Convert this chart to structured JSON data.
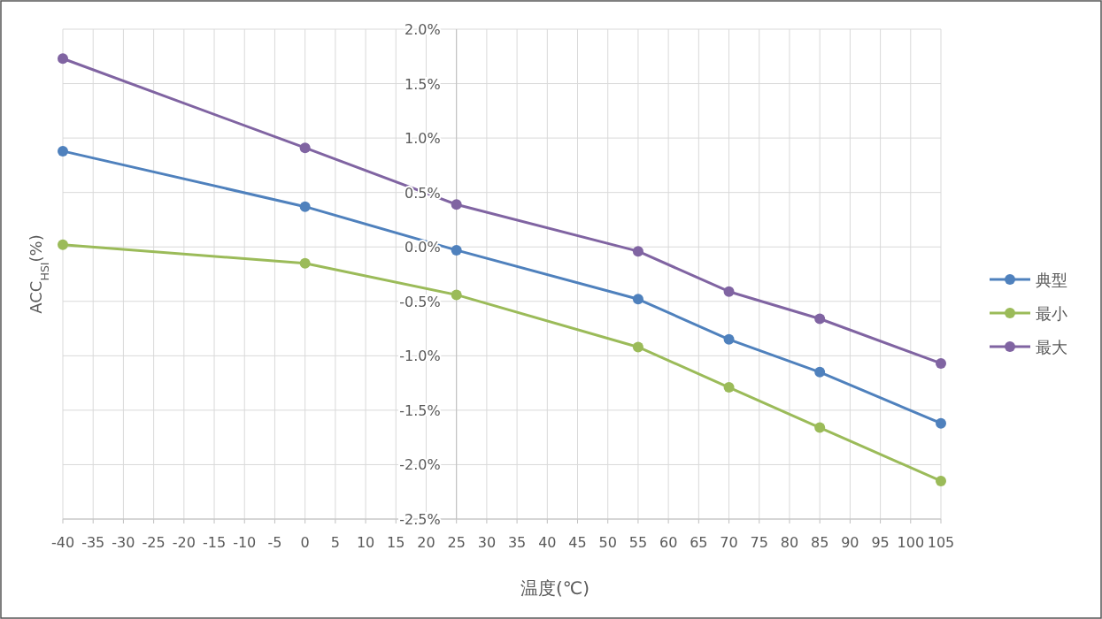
{
  "chart_data": {
    "type": "line",
    "xlabel": "温度(℃)",
    "ylabel": "ACC$_{HSI}$(%)",
    "x": [
      -40,
      0,
      25,
      55,
      70,
      85,
      105
    ],
    "series": [
      {
        "name": "典型",
        "color": "#4f81bd",
        "values": [
          0.88,
          0.37,
          -0.03,
          -0.48,
          -0.85,
          -1.15,
          -1.62
        ]
      },
      {
        "name": "最小",
        "color": "#9bbb59",
        "values": [
          0.02,
          -0.15,
          -0.44,
          -0.92,
          -1.29,
          -1.66,
          -2.15
        ]
      },
      {
        "name": "最大",
        "color": "#8064a2",
        "values": [
          1.73,
          0.91,
          0.39,
          -0.04,
          -0.41,
          -0.66,
          -1.07
        ]
      }
    ],
    "xlim": [
      -40,
      105
    ],
    "xticks": [
      -40,
      -35,
      -30,
      -25,
      -20,
      -15,
      -10,
      -5,
      0,
      5,
      10,
      15,
      20,
      25,
      30,
      35,
      40,
      45,
      50,
      55,
      60,
      65,
      70,
      75,
      80,
      85,
      90,
      95,
      100,
      105
    ],
    "ylim": [
      -2.5,
      2.0
    ],
    "yticks": [
      {
        "value": -2.5,
        "label": "-2.5%"
      },
      {
        "value": -2.0,
        "label": "-2.0%"
      },
      {
        "value": -1.5,
        "label": "-1.5%"
      },
      {
        "value": -1.0,
        "label": "-1.0%"
      },
      {
        "value": -0.5,
        "label": "-0.5%"
      },
      {
        "value": 0.0,
        "label": "0.0%"
      },
      {
        "value": 0.5,
        "label": "0.5%"
      },
      {
        "value": 1.0,
        "label": "1.0%"
      },
      {
        "value": 1.5,
        "label": "1.5%"
      },
      {
        "value": 2.0,
        "label": "2.0%"
      }
    ],
    "grid": true,
    "legend": "right",
    "marker": "circle",
    "line_style": "solid"
  }
}
